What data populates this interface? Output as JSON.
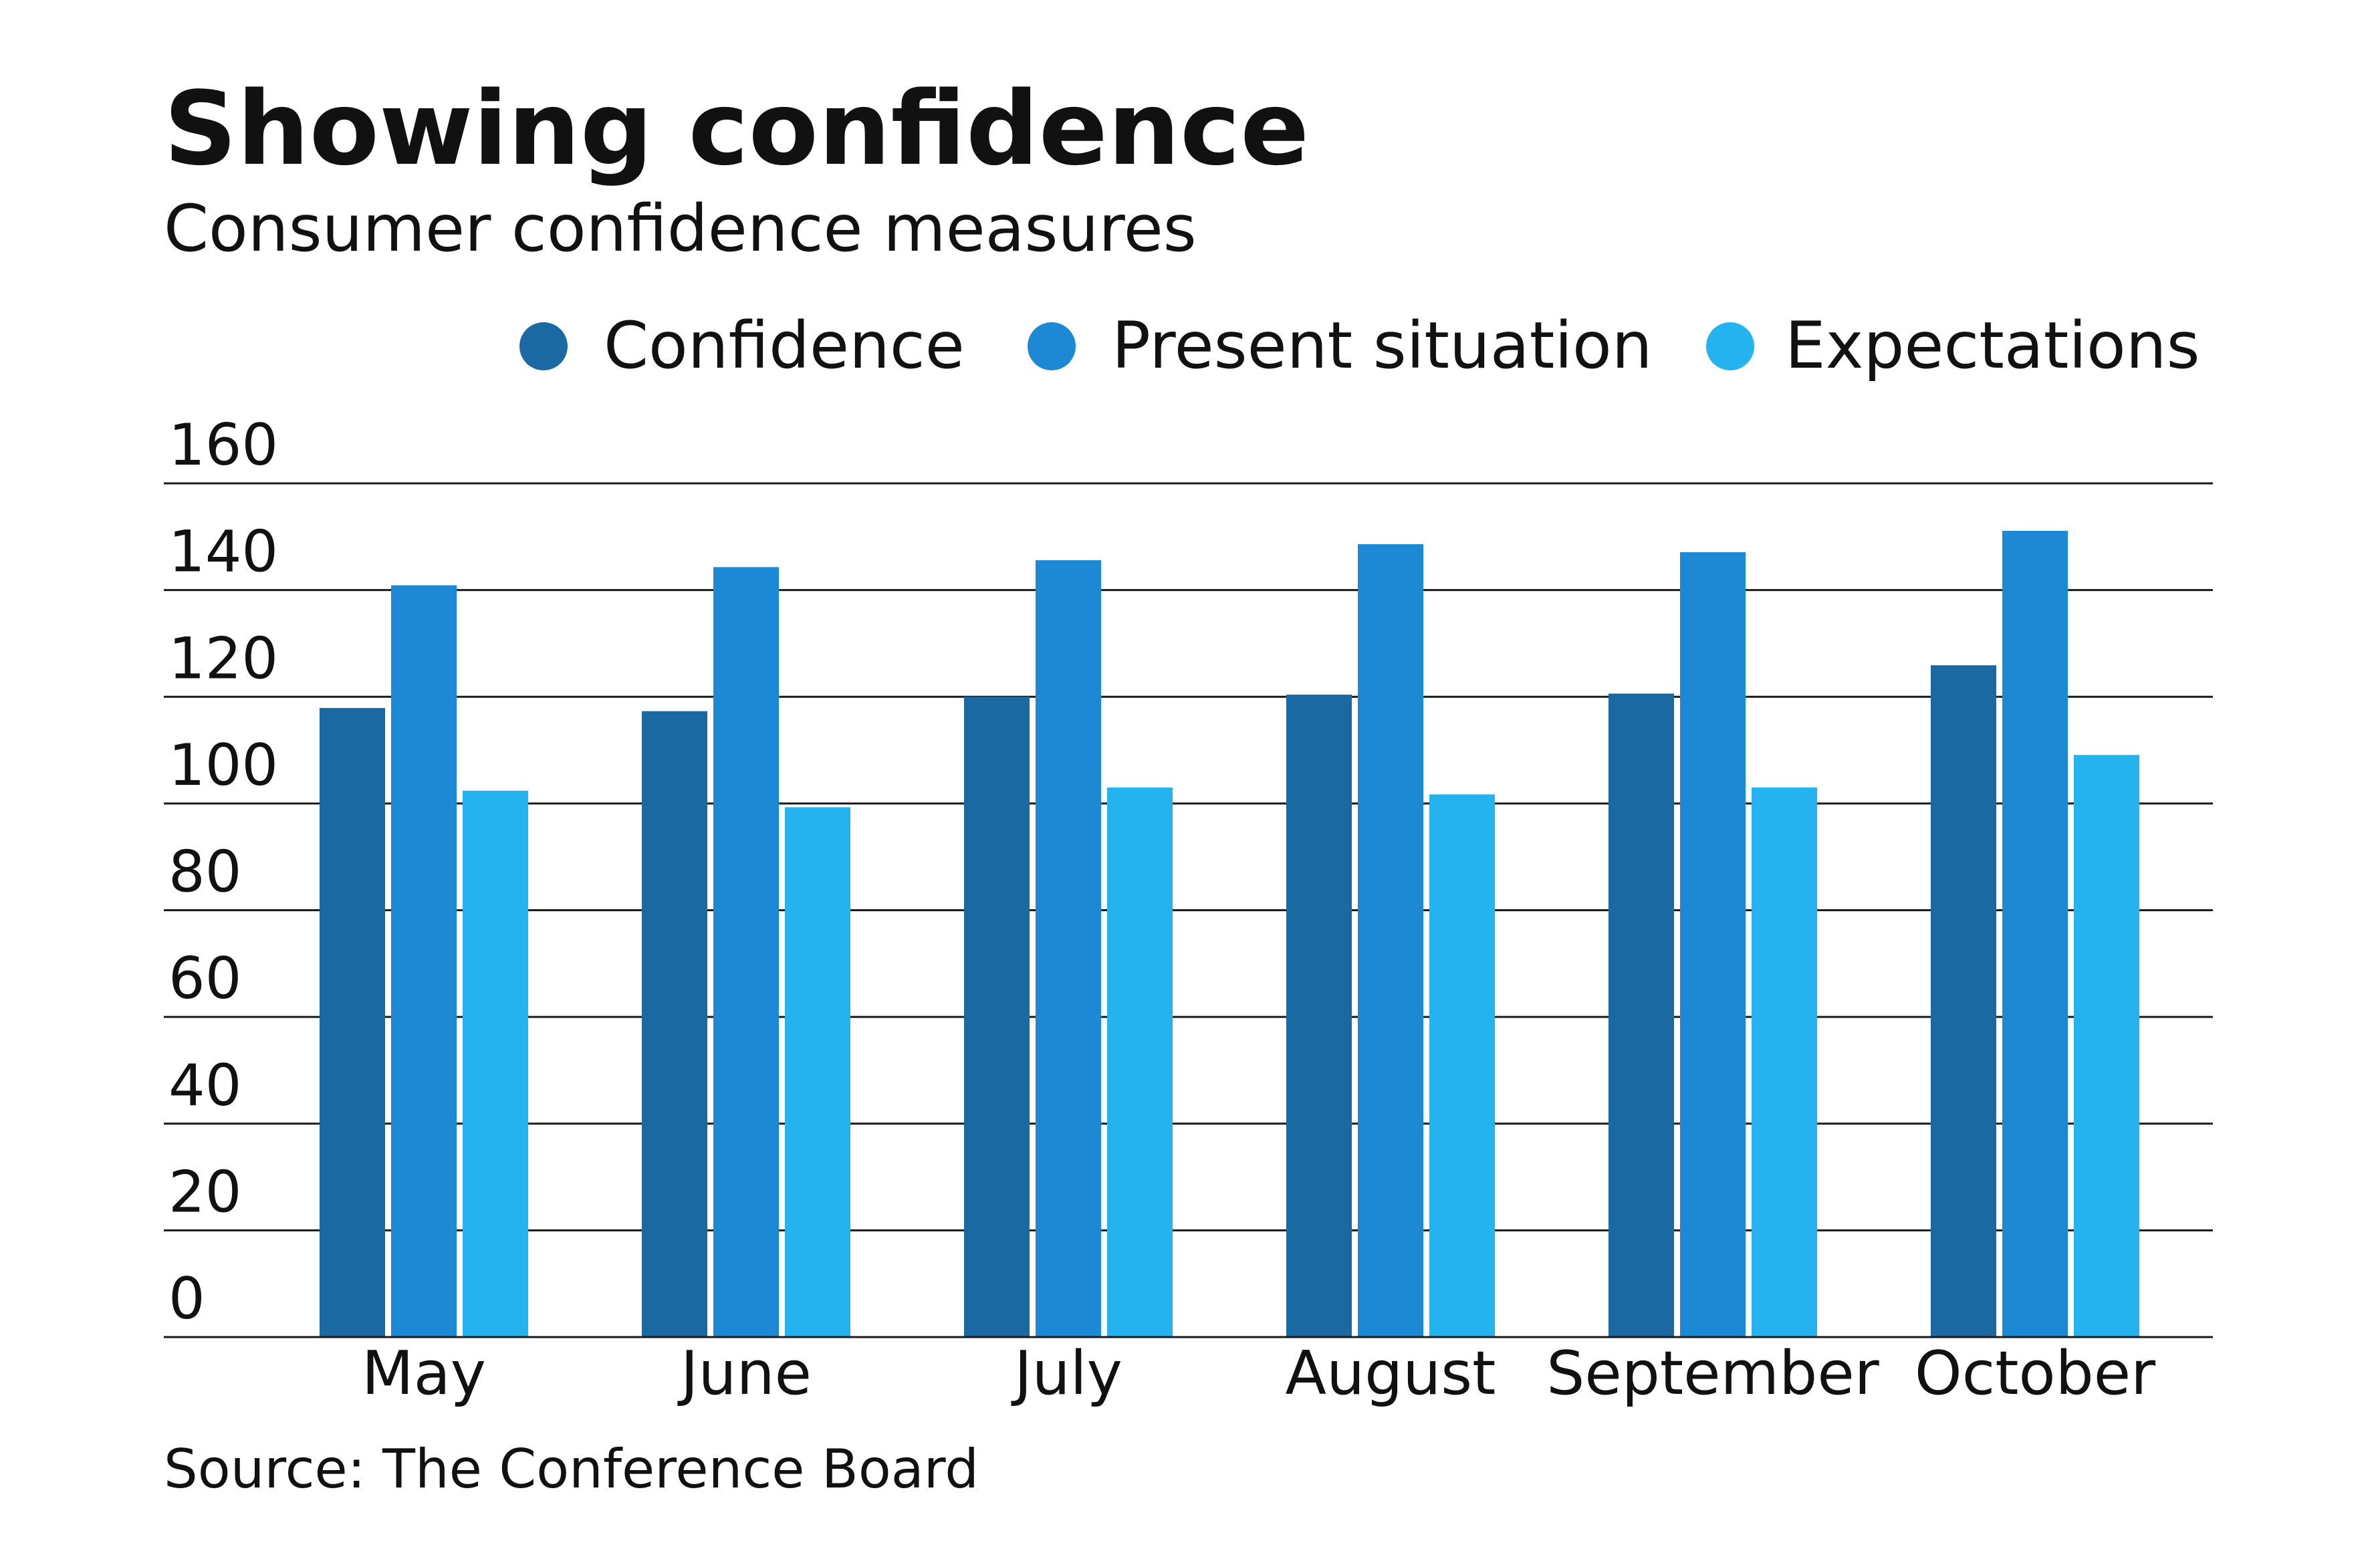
{
  "title": "Showing confidence",
  "subtitle": "Consumer confidence measures",
  "source": "Source: The Conference Board",
  "legend": [
    {
      "label": "Confidence",
      "color": "#1B69A3"
    },
    {
      "label": "Present situation",
      "color": "#1D88D4"
    },
    {
      "label": "Expectations",
      "color": "#24B3EF"
    }
  ],
  "chart_data": {
    "type": "bar",
    "title": "Showing confidence",
    "subtitle": "Consumer confidence measures",
    "categories": [
      "May",
      "June",
      "July",
      "August",
      "September",
      "October"
    ],
    "series": [
      {
        "name": "Confidence",
        "color": "#1B69A3",
        "values": [
          117.9,
          117.3,
          120.0,
          120.4,
          120.6,
          125.9
        ]
      },
      {
        "name": "Present situation",
        "color": "#1D88D4",
        "values": [
          140.9,
          144.3,
          145.6,
          148.6,
          147.1,
          151.1
        ]
      },
      {
        "name": "Expectations",
        "color": "#24B3EF",
        "values": [
          102.4,
          99.3,
          103.0,
          101.7,
          103.0,
          109.1
        ]
      }
    ],
    "xlabel": "",
    "ylabel": "",
    "ylim": [
      0,
      160
    ],
    "yticks": [
      0,
      20,
      40,
      60,
      80,
      100,
      120,
      140,
      160
    ],
    "grid": true,
    "legend_position": "top-right"
  }
}
